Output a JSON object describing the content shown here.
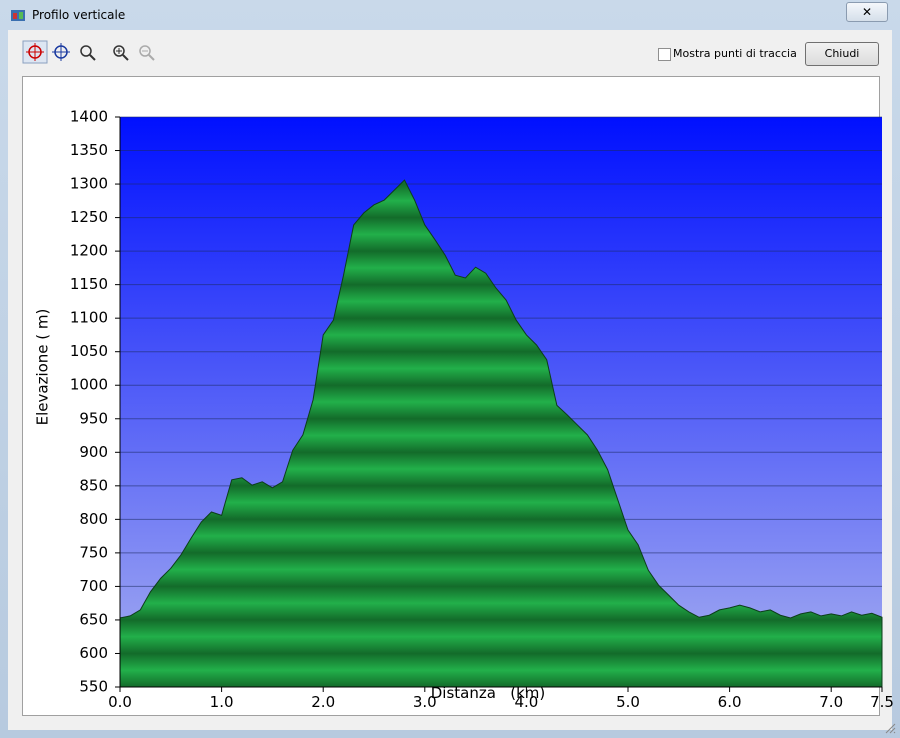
{
  "window": {
    "title": "Profilo verticale"
  },
  "toolbar": {
    "checkbox_label": "Mostra punti di traccia",
    "button": "Chiudi"
  },
  "chart_data": {
    "type": "area",
    "x_label": "Distanza   (km)",
    "y_label": "Elevazione ( m)",
    "x": [
      0,
      0.1,
      0.2,
      0.3,
      0.4,
      0.5,
      0.6,
      0.7,
      0.8,
      0.9,
      1.0,
      1.1,
      1.2,
      1.3,
      1.4,
      1.5,
      1.6,
      1.7,
      1.8,
      1.9,
      2.0,
      2.1,
      2.2,
      2.3,
      2.4,
      2.5,
      2.6,
      2.7,
      2.8,
      2.9,
      3.0,
      3.1,
      3.2,
      3.3,
      3.4,
      3.5,
      3.6,
      3.7,
      3.8,
      3.9,
      4.0,
      4.1,
      4.2,
      4.3,
      4.4,
      4.5,
      4.6,
      4.7,
      4.8,
      4.9,
      5.0,
      5.1,
      5.2,
      5.3,
      5.4,
      5.5,
      5.6,
      5.7,
      5.8,
      5.9,
      6.0,
      6.1,
      6.2,
      6.3,
      6.4,
      6.5,
      6.6,
      6.7,
      6.8,
      6.9,
      7.0,
      7.1,
      7.2,
      7.3,
      7.4,
      7.5
    ],
    "series": [
      {
        "color": "#1a9a3a",
        "values": [
          653,
          656,
          665,
          692,
          712,
          727,
          747,
          772,
          796,
          811,
          806,
          859,
          862,
          851,
          856,
          847,
          856,
          903,
          926,
          978,
          1075,
          1097,
          1164,
          1239,
          1257,
          1269,
          1276,
          1291,
          1306,
          1276,
          1239,
          1217,
          1194,
          1164,
          1160,
          1176,
          1167,
          1145,
          1127,
          1097,
          1075,
          1060,
          1038,
          970,
          956,
          941,
          926,
          903,
          874,
          829,
          784,
          762,
          724,
          702,
          687,
          672,
          662,
          654,
          657,
          665,
          668,
          672,
          668,
          662,
          665,
          657,
          653,
          659,
          662,
          656,
          659,
          656,
          662,
          657,
          660,
          654
        ]
      }
    ],
    "xlim": [
      0,
      7.5
    ],
    "xticks": [
      {
        "value": 0,
        "label": "0.0"
      },
      {
        "value": 1,
        "label": "1.0"
      },
      {
        "value": 2,
        "label": "2.0"
      },
      {
        "value": 3,
        "label": "3.0"
      },
      {
        "value": 4,
        "label": "4.0"
      },
      {
        "value": 5,
        "label": "5.0"
      },
      {
        "value": 6,
        "label": "6.0"
      },
      {
        "value": 7,
        "label": "7.0"
      },
      7.5
    ],
    "ylim": [
      550,
      1400
    ],
    "yticks": [
      550,
      600,
      650,
      700,
      750,
      800,
      850,
      900,
      950,
      1000,
      1050,
      1100,
      1150,
      1200,
      1250,
      1300,
      1350,
      1400
    ],
    "grid": true
  }
}
